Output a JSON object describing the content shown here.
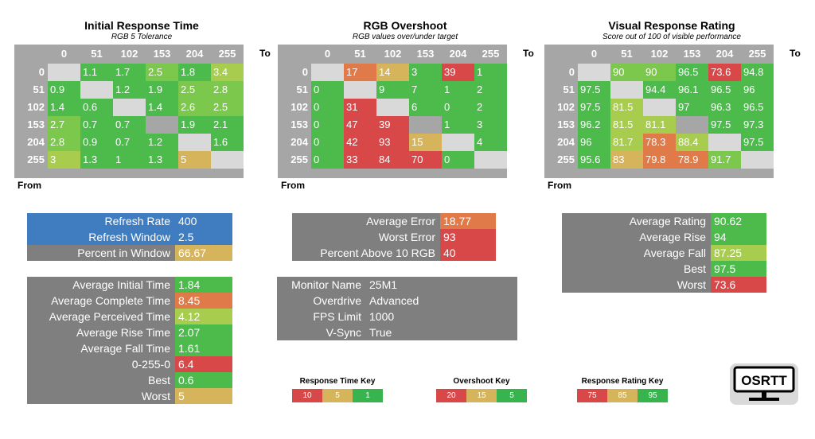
{
  "colors": {
    "red": "#d94848",
    "orange": "#e07a48",
    "tan": "#d6b45c",
    "yellowgreen": "#a7cc4e",
    "green": "#4cbb4c",
    "green2": "#37b44e",
    "lightgreen": "#7cc84c",
    "gray": "#a6a6a6",
    "empty": "#d9d9d9",
    "panel": "#7f7f7f",
    "blue": "#3f7dc0"
  },
  "axis": {
    "to_label": "To",
    "from_label": "From"
  },
  "chart_data": [
    {
      "type": "heatmap",
      "title": "Initial Response Time",
      "subtitle": "RGB 5 Tolerance",
      "x_labels": [
        "0",
        "51",
        "102",
        "153",
        "204",
        "255"
      ],
      "y_labels": [
        "0",
        "51",
        "102",
        "153",
        "204",
        "255"
      ],
      "values": [
        [
          null,
          "1.1",
          "1.7",
          "2.5",
          "1.8",
          "3.4"
        ],
        [
          "0.9",
          null,
          "1.2",
          "1.9",
          "2.5",
          "2.8"
        ],
        [
          "1.4",
          "0.6",
          null,
          "1.4",
          "2.6",
          "2.5"
        ],
        [
          "2.7",
          "0.7",
          "0.7",
          null,
          "1.9",
          "2.1"
        ],
        [
          "2.8",
          "0.9",
          "0.7",
          "1.2",
          null,
          "1.6"
        ],
        [
          "3",
          "1.3",
          "1",
          "1.3",
          "5",
          null
        ]
      ],
      "cell_colors": [
        [
          "empty",
          "green",
          "green",
          "lightgreen",
          "green",
          "yellowgreen"
        ],
        [
          "green",
          "empty",
          "green",
          "green",
          "lightgreen",
          "lightgreen"
        ],
        [
          "green",
          "green",
          "empty",
          "green",
          "lightgreen",
          "lightgreen"
        ],
        [
          "lightgreen",
          "green",
          "green",
          "gray",
          "green",
          "green"
        ],
        [
          "lightgreen",
          "green",
          "green",
          "green",
          "empty",
          "green"
        ],
        [
          "yellowgreen",
          "green",
          "green",
          "green",
          "tan",
          "empty"
        ]
      ]
    },
    {
      "type": "heatmap",
      "title": "RGB Overshoot",
      "subtitle": "RGB values over/under target",
      "x_labels": [
        "0",
        "51",
        "102",
        "153",
        "204",
        "255"
      ],
      "y_labels": [
        "0",
        "51",
        "102",
        "153",
        "204",
        "255"
      ],
      "values": [
        [
          null,
          "17",
          "14",
          "3",
          "39",
          "1"
        ],
        [
          "0",
          null,
          "9",
          "7",
          "1",
          "2"
        ],
        [
          "0",
          "31",
          null,
          "6",
          "0",
          "2"
        ],
        [
          "0",
          "47",
          "39",
          null,
          "1",
          "3"
        ],
        [
          "0",
          "42",
          "93",
          "15",
          null,
          "4"
        ],
        [
          "0",
          "33",
          "84",
          "70",
          "0",
          null
        ]
      ],
      "cell_colors": [
        [
          "empty",
          "orange",
          "tan",
          "green",
          "red",
          "green"
        ],
        [
          "green",
          "empty",
          "green",
          "green",
          "green",
          "green"
        ],
        [
          "green",
          "red",
          "empty",
          "green",
          "green",
          "green"
        ],
        [
          "green",
          "red",
          "red",
          "gray",
          "green",
          "green"
        ],
        [
          "green",
          "red",
          "red",
          "tan",
          "empty",
          "green"
        ],
        [
          "green",
          "red",
          "red",
          "red",
          "green",
          "empty"
        ]
      ]
    },
    {
      "type": "heatmap",
      "title": "Visual Response Rating",
      "subtitle": "Score out of 100 of visible performance",
      "x_labels": [
        "0",
        "51",
        "102",
        "153",
        "204",
        "255"
      ],
      "y_labels": [
        "0",
        "51",
        "102",
        "153",
        "204",
        "255"
      ],
      "values": [
        [
          null,
          "90",
          "90",
          "96.5",
          "73.6",
          "94.8"
        ],
        [
          "97.5",
          null,
          "94.4",
          "96.1",
          "96.5",
          "96"
        ],
        [
          "97.5",
          "81.5",
          null,
          "97",
          "96.3",
          "96.5"
        ],
        [
          "96.2",
          "81.5",
          "81.1",
          null,
          "97.5",
          "97.3"
        ],
        [
          "96",
          "81.7",
          "78.3",
          "88.4",
          null,
          "97.5"
        ],
        [
          "95.6",
          "83",
          "79.8",
          "78.9",
          "91.7",
          null
        ]
      ],
      "cell_colors": [
        [
          "empty",
          "lightgreen",
          "lightgreen",
          "green",
          "red",
          "green"
        ],
        [
          "green",
          "empty",
          "green",
          "green",
          "green",
          "green"
        ],
        [
          "green",
          "yellowgreen",
          "empty",
          "green",
          "green",
          "green"
        ],
        [
          "green",
          "yellowgreen",
          "yellowgreen",
          "gray",
          "green",
          "green"
        ],
        [
          "green",
          "yellowgreen",
          "orange",
          "yellowgreen",
          "empty",
          "green"
        ],
        [
          "green",
          "tan",
          "orange",
          "orange",
          "lightgreen",
          "empty"
        ]
      ]
    }
  ],
  "panels": {
    "refresh": [
      {
        "label": "Refresh Rate",
        "value": "400",
        "label_color": "blue",
        "value_color": "blue"
      },
      {
        "label": "Refresh Window",
        "value": "2.5",
        "label_color": "blue",
        "value_color": "blue"
      },
      {
        "label": "Percent in Window",
        "value": "66.67",
        "label_color": "panel",
        "value_color": "tan"
      }
    ],
    "times": [
      {
        "label": "Average Initial Time",
        "value": "1.84",
        "value_color": "green"
      },
      {
        "label": "Average Complete Time",
        "value": "8.45",
        "value_color": "orange"
      },
      {
        "label": "Average Perceived Time",
        "value": "4.12",
        "value_color": "yellowgreen"
      },
      {
        "label": "Average Rise Time",
        "value": "2.07",
        "value_color": "green"
      },
      {
        "label": "Average Fall Time",
        "value": "1.61",
        "value_color": "green"
      },
      {
        "label": "0-255-0",
        "value": "6.4",
        "value_color": "red"
      },
      {
        "label": "Best",
        "value": "0.6",
        "value_color": "green"
      },
      {
        "label": "Worst",
        "value": "5",
        "value_color": "tan"
      }
    ],
    "overshoot": [
      {
        "label": "Average Error",
        "value": "18.77",
        "value_color": "orange"
      },
      {
        "label": "Worst Error",
        "value": "93",
        "value_color": "red"
      },
      {
        "label": "Percent Above 10 RGB",
        "value": "40",
        "value_color": "red"
      }
    ],
    "monitor": [
      {
        "label": "Monitor Name",
        "value": "25M1"
      },
      {
        "label": "Overdrive",
        "value": "Advanced"
      },
      {
        "label": "FPS Limit",
        "value": "1000"
      },
      {
        "label": "V-Sync",
        "value": "True"
      }
    ],
    "rating": [
      {
        "label": "Average Rating",
        "value": "90.62",
        "value_color": "green"
      },
      {
        "label": "Average Rise",
        "value": "94",
        "value_color": "green"
      },
      {
        "label": "Average Fall",
        "value": "87.25",
        "value_color": "yellowgreen"
      },
      {
        "label": "Best",
        "value": "97.5",
        "value_color": "green"
      },
      {
        "label": "Worst",
        "value": "73.6",
        "value_color": "red"
      }
    ]
  },
  "keys": [
    {
      "title": "Response Time Key",
      "cells": [
        {
          "text": "10",
          "color": "red"
        },
        {
          "text": "5",
          "color": "tan"
        },
        {
          "text": "1",
          "color": "green2"
        }
      ]
    },
    {
      "title": "Overshoot Key",
      "cells": [
        {
          "text": "20",
          "color": "red"
        },
        {
          "text": "15",
          "color": "tan"
        },
        {
          "text": "5",
          "color": "green2"
        }
      ]
    },
    {
      "title": "Response Rating Key",
      "cells": [
        {
          "text": "75",
          "color": "red"
        },
        {
          "text": "85",
          "color": "tan"
        },
        {
          "text": "95",
          "color": "green2"
        }
      ]
    }
  ],
  "logo": {
    "text": "OSRTT"
  }
}
